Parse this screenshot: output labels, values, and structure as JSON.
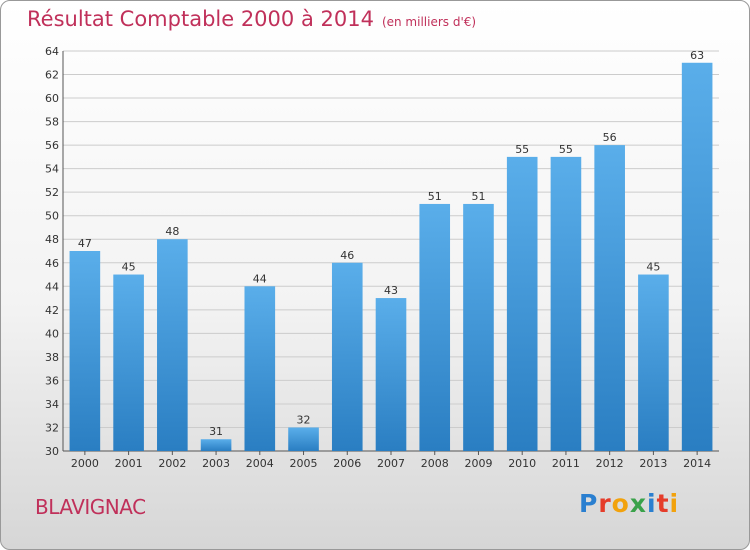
{
  "header": {
    "title": "Résultat Comptable 2000 à 2014",
    "unit": "(en milliers d'€)"
  },
  "footer": {
    "place": "BLAVIGNAC",
    "brand_letters": [
      "P",
      "r",
      "o",
      "x",
      "i",
      "t",
      "i"
    ],
    "brand_colors": [
      "#2a7fd0",
      "#e53c2a",
      "#f2a20c",
      "#3aa24a",
      "#2a7fd0",
      "#e53c2a",
      "#f2a20c"
    ]
  },
  "colors": {
    "bar_light": "#5aaeea",
    "bar_dark": "#2a7ec2",
    "grid": "#cccccc",
    "title": "#c0305a"
  },
  "chart_data": {
    "type": "bar",
    "title": "Résultat Comptable 2000 à 2014",
    "subtitle": "(en milliers d'€)",
    "categories": [
      "2000",
      "2001",
      "2002",
      "2003",
      "2004",
      "2005",
      "2006",
      "2007",
      "2008",
      "2009",
      "2010",
      "2011",
      "2012",
      "2013",
      "2014"
    ],
    "values": [
      47,
      45,
      48,
      31,
      44,
      32,
      46,
      43,
      51,
      51,
      55,
      55,
      56,
      45,
      63
    ],
    "ylim": [
      30,
      64
    ],
    "yticks": [
      30,
      32,
      34,
      36,
      38,
      40,
      42,
      44,
      46,
      48,
      50,
      52,
      54,
      56,
      58,
      60,
      62,
      64
    ],
    "grid": true,
    "xlabel": "",
    "ylabel": ""
  }
}
